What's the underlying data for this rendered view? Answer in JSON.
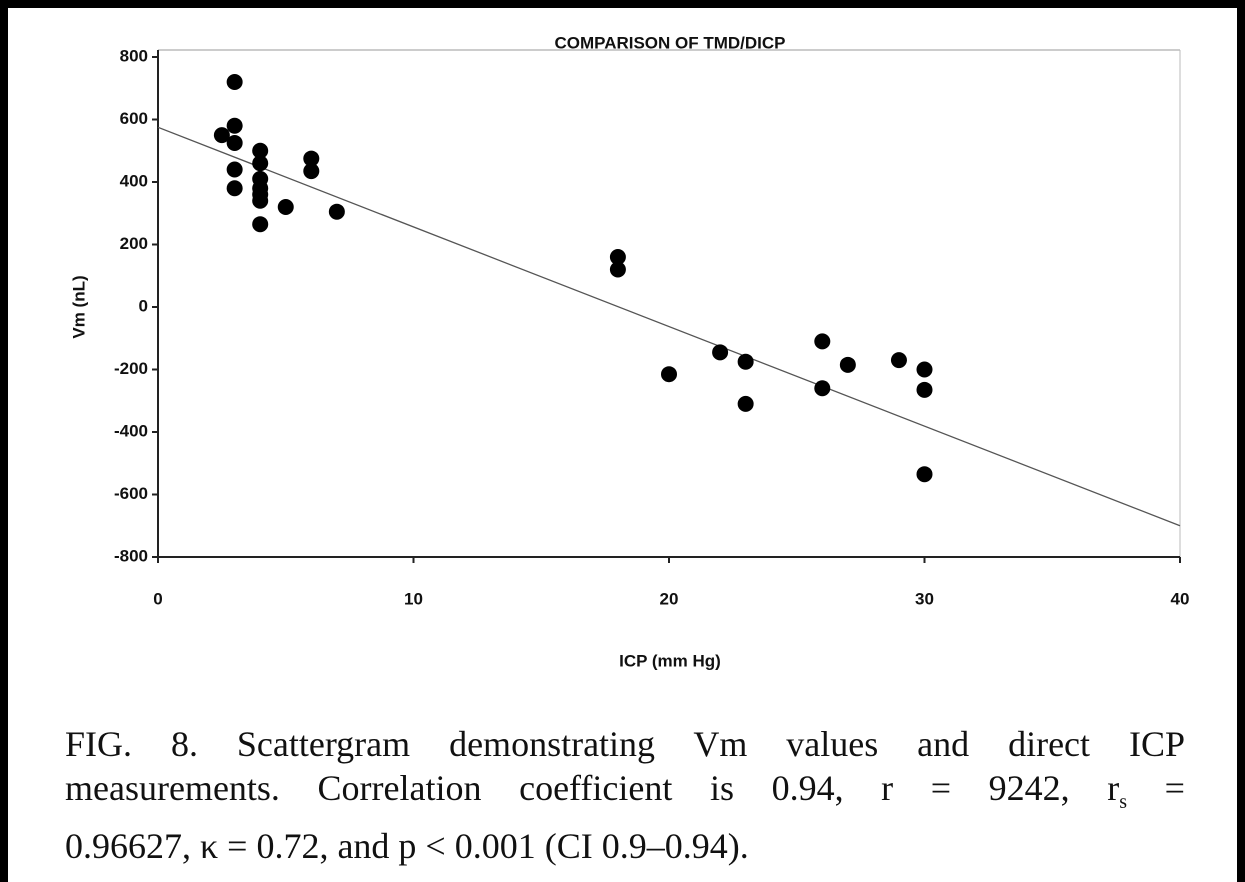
{
  "chart_data": {
    "type": "scatter",
    "title": "COMPARISON OF TMD/DICP",
    "x_label": "ICP (mm Hg)",
    "y_label": "Vm (nL)",
    "x": [
      2.5,
      3,
      3,
      3,
      3,
      3,
      4,
      4,
      4,
      4,
      4,
      4,
      4,
      5,
      6,
      6,
      7,
      18,
      18,
      20,
      22,
      23,
      23,
      26,
      26,
      27,
      29,
      30,
      30,
      30
    ],
    "y": [
      550,
      720,
      580,
      525,
      440,
      380,
      500,
      460,
      410,
      380,
      360,
      340,
      265,
      320,
      475,
      435,
      305,
      160,
      120,
      -215,
      -145,
      -175,
      -310,
      -110,
      -260,
      -185,
      -170,
      -200,
      -265,
      -535
    ],
    "color": "#000000",
    "trend_line": {
      "x": [
        0,
        40
      ],
      "y": [
        575,
        -700
      ]
    },
    "xlim": [
      0,
      40
    ],
    "xticks": [
      0,
      10,
      20,
      30,
      40
    ],
    "ylim": [
      -800,
      800
    ],
    "yticks": [
      -800,
      -600,
      -400,
      -200,
      0,
      200,
      400,
      600,
      800
    ],
    "grid": false
  },
  "caption_lines": [
    [
      "FIG. 8. Scattergram demonstrating Vm values and direct ICP"
    ],
    [
      "measurements. Correlation coefficient is 0.94, r = 9242, r",
      "s",
      " ="
    ],
    [
      "0.96627, κ = 0.72, and p < 0.001 (CI 0.9–0.94)."
    ]
  ]
}
